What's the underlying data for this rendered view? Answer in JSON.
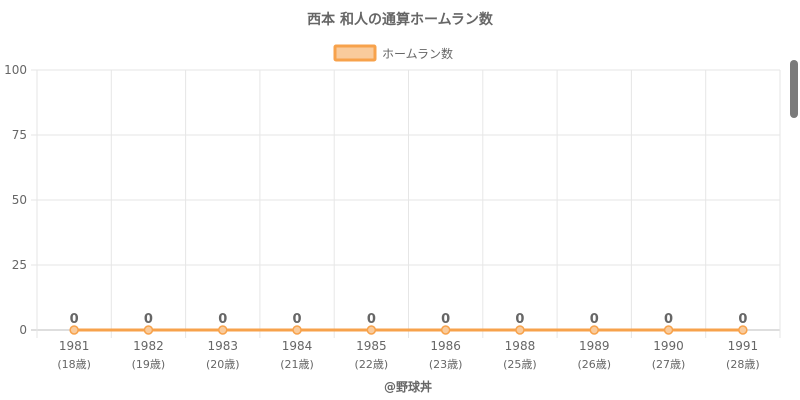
{
  "chart_data": {
    "type": "line",
    "title": "西本 和人の通算ホームラン数",
    "categories": [
      "1981",
      "1982",
      "1983",
      "1984",
      "1985",
      "1986",
      "1988",
      "1989",
      "1990",
      "1991"
    ],
    "category_sub": [
      "(18歳)",
      "(19歳)",
      "(20歳)",
      "(21歳)",
      "(22歳)",
      "(23歳)",
      "(25歳)",
      "(26歳)",
      "(27歳)",
      "(28歳)"
    ],
    "series": [
      {
        "name": "ホームラン数",
        "values": [
          0,
          0,
          0,
          0,
          0,
          0,
          0,
          0,
          0,
          0
        ]
      }
    ],
    "ylim": [
      0,
      100
    ],
    "yticks": [
      "0",
      "25",
      "50",
      "75",
      "100"
    ],
    "grid": true,
    "legend": "top-center",
    "colors": {
      "line": "#f7a24b",
      "fill": "#f9cb9c",
      "grid": "#e6e6e6",
      "text": "#666666"
    }
  },
  "credit": "@野球丼"
}
